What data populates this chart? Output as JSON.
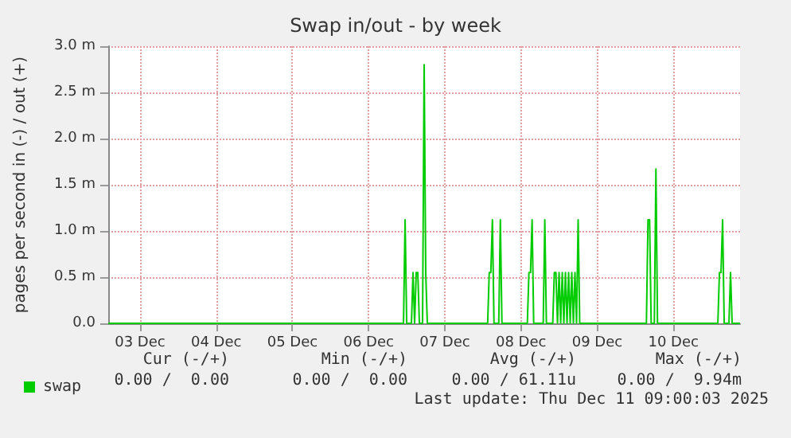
{
  "chart_data": {
    "type": "line",
    "title": "Swap in/out - by week",
    "ylabel": "pages per second in (-) / out (+)",
    "x": [
      "2025-12-03T02:00",
      "2025-12-06T23:00",
      "2025-12-06T23:30",
      "2025-12-07T00:00",
      "2025-12-07T01:30",
      "2025-12-07T02:00",
      "2025-12-07T02:30",
      "2025-12-07T03:00",
      "2025-12-07T03:30",
      "2025-12-07T04:00",
      "2025-12-07T05:00",
      "2025-12-07T05:30",
      "2025-12-07T06:00",
      "2025-12-07T06:30",
      "2025-12-08T01:30",
      "2025-12-08T02:00",
      "2025-12-08T02:30",
      "2025-12-08T03:00",
      "2025-12-08T03:30",
      "2025-12-08T05:00",
      "2025-12-08T05:30",
      "2025-12-08T06:00",
      "2025-12-08T14:00",
      "2025-12-08T14:30",
      "2025-12-08T15:00",
      "2025-12-08T15:30",
      "2025-12-08T16:00",
      "2025-12-08T19:00",
      "2025-12-08T19:30",
      "2025-12-08T20:00",
      "2025-12-08T22:00",
      "2025-12-08T22:30",
      "2025-12-08T23:00",
      "2025-12-08T23:30",
      "2025-12-09T00:00",
      "2025-12-09T00:30",
      "2025-12-09T01:00",
      "2025-12-09T01:30",
      "2025-12-09T02:00",
      "2025-12-09T02:30",
      "2025-12-09T03:00",
      "2025-12-09T03:30",
      "2025-12-09T04:00",
      "2025-12-09T04:30",
      "2025-12-09T05:00",
      "2025-12-09T05:30",
      "2025-12-09T06:00",
      "2025-12-09T06:30",
      "2025-12-10T03:30",
      "2025-12-10T04:00",
      "2025-12-10T04:30",
      "2025-12-10T05:00",
      "2025-12-10T06:00",
      "2025-12-10T06:30",
      "2025-12-10T07:00",
      "2025-12-11T02:00",
      "2025-12-11T02:30",
      "2025-12-11T03:00",
      "2025-12-11T03:30",
      "2025-12-11T04:00",
      "2025-12-11T05:30",
      "2025-12-11T06:00",
      "2025-12-11T06:30",
      "2025-12-11T09:00"
    ],
    "series": [
      {
        "name": "swap",
        "color": "#00cc00",
        "values": [
          0,
          0,
          1.12,
          0,
          0,
          0.55,
          0,
          0.55,
          0.55,
          0,
          0,
          2.8,
          0.55,
          0,
          0,
          0.55,
          0.55,
          1.12,
          0,
          0,
          1.12,
          0,
          0,
          0.55,
          0.55,
          1.12,
          0,
          0,
          1.12,
          0,
          0,
          0.55,
          0.55,
          0,
          0.55,
          0,
          0.55,
          0,
          0.55,
          0,
          0.55,
          0,
          0.55,
          0,
          0.55,
          0,
          1.12,
          0,
          0,
          1.12,
          1.12,
          0,
          0,
          1.67,
          0,
          0,
          0.55,
          0.55,
          1.12,
          0,
          0,
          0.55,
          0,
          0
        ]
      }
    ],
    "xlim": [
      "2025-12-03T02:00",
      "2025-12-11T09:00"
    ],
    "xticks": [
      {
        "value": "2025-12-03T12:00",
        "label": "03 Dec"
      },
      {
        "value": "2025-12-04T12:00",
        "label": "04 Dec"
      },
      {
        "value": "2025-12-05T12:00",
        "label": "05 Dec"
      },
      {
        "value": "2025-12-06T12:00",
        "label": "06 Dec"
      },
      {
        "value": "2025-12-07T12:00",
        "label": "07 Dec"
      },
      {
        "value": "2025-12-08T12:00",
        "label": "08 Dec"
      },
      {
        "value": "2025-12-09T12:00",
        "label": "09 Dec"
      },
      {
        "value": "2025-12-10T12:00",
        "label": "10 Dec"
      }
    ],
    "ylim": [
      0,
      3
    ],
    "yticks": [
      {
        "value": 0,
        "label": "0.0"
      },
      {
        "value": 0.5,
        "label": "0.5 m"
      },
      {
        "value": 1,
        "label": "1.0 m"
      },
      {
        "value": 1.5,
        "label": "1.5 m"
      },
      {
        "value": 2,
        "label": "2.0 m"
      },
      {
        "value": 2.5,
        "label": "2.5 m"
      },
      {
        "value": 3,
        "label": "3.0 m"
      }
    ],
    "grid": true,
    "legend": "bottom left",
    "marker": "none",
    "line_style": "solid",
    "annotations": [
      "Cur (-/+)",
      "Min (-/+)",
      "Avg (-/+)",
      "Max (-/+)",
      "0.00 /  0.00",
      "0.00 /  0.00",
      "0.00 / 61.11u",
      "0.00 /  9.94m",
      "Last update: Thu Dec 11 09:00:03 2025"
    ]
  }
}
